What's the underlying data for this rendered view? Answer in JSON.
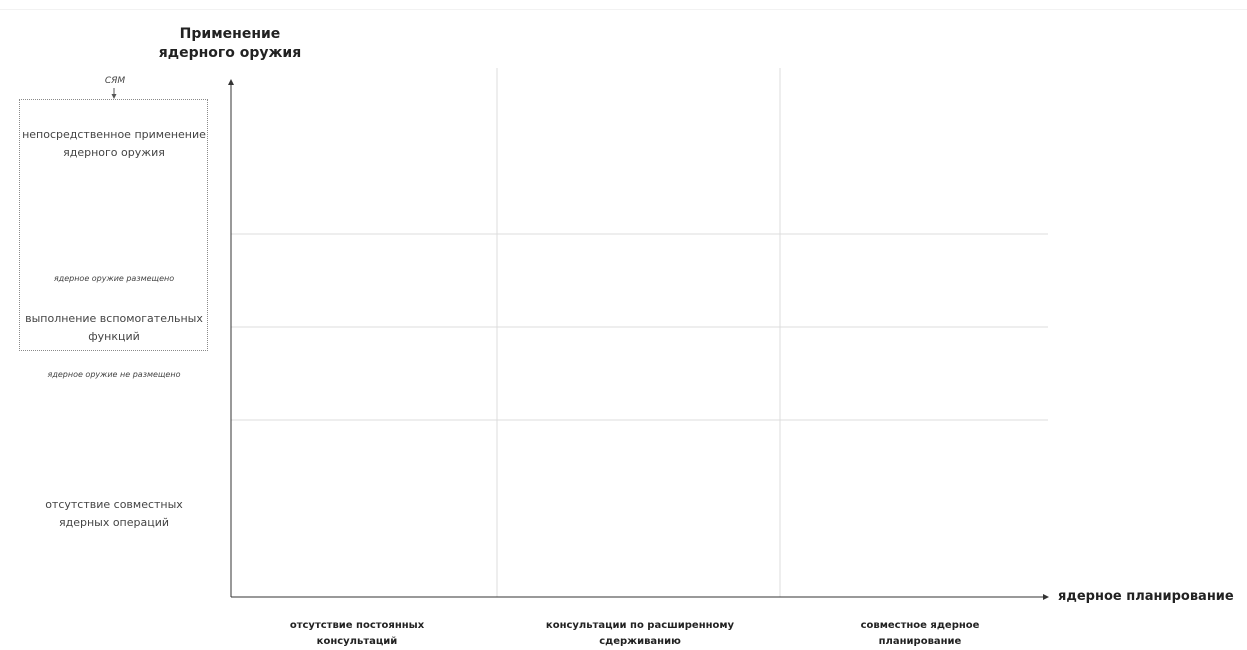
{
  "axes": {
    "y_title": "Применение ядерного оружия",
    "x_title": "ядерное планирование"
  },
  "y_levels": [
    {
      "label": "непосредственное применение ядерного оружия"
    },
    {
      "label": "выполнение вспомогательных функций"
    },
    {
      "label": "отсутствие совместных ядерных операций"
    }
  ],
  "y_notes": {
    "cyam": "СЯМ",
    "deployed": "ядерное оружие размещено",
    "not_deployed": "ядерное оружие не размещено"
  },
  "x_categories": [
    {
      "label": "отсутствие постоянных консультаций"
    },
    {
      "label": "консультации по расширенному сдерживанию"
    },
    {
      "label": "совместное ядерное планирование"
    }
  ],
  "colors": {
    "axis": "#333333",
    "grid": "#dcdcdc",
    "box_border": "#8a8a8a"
  }
}
